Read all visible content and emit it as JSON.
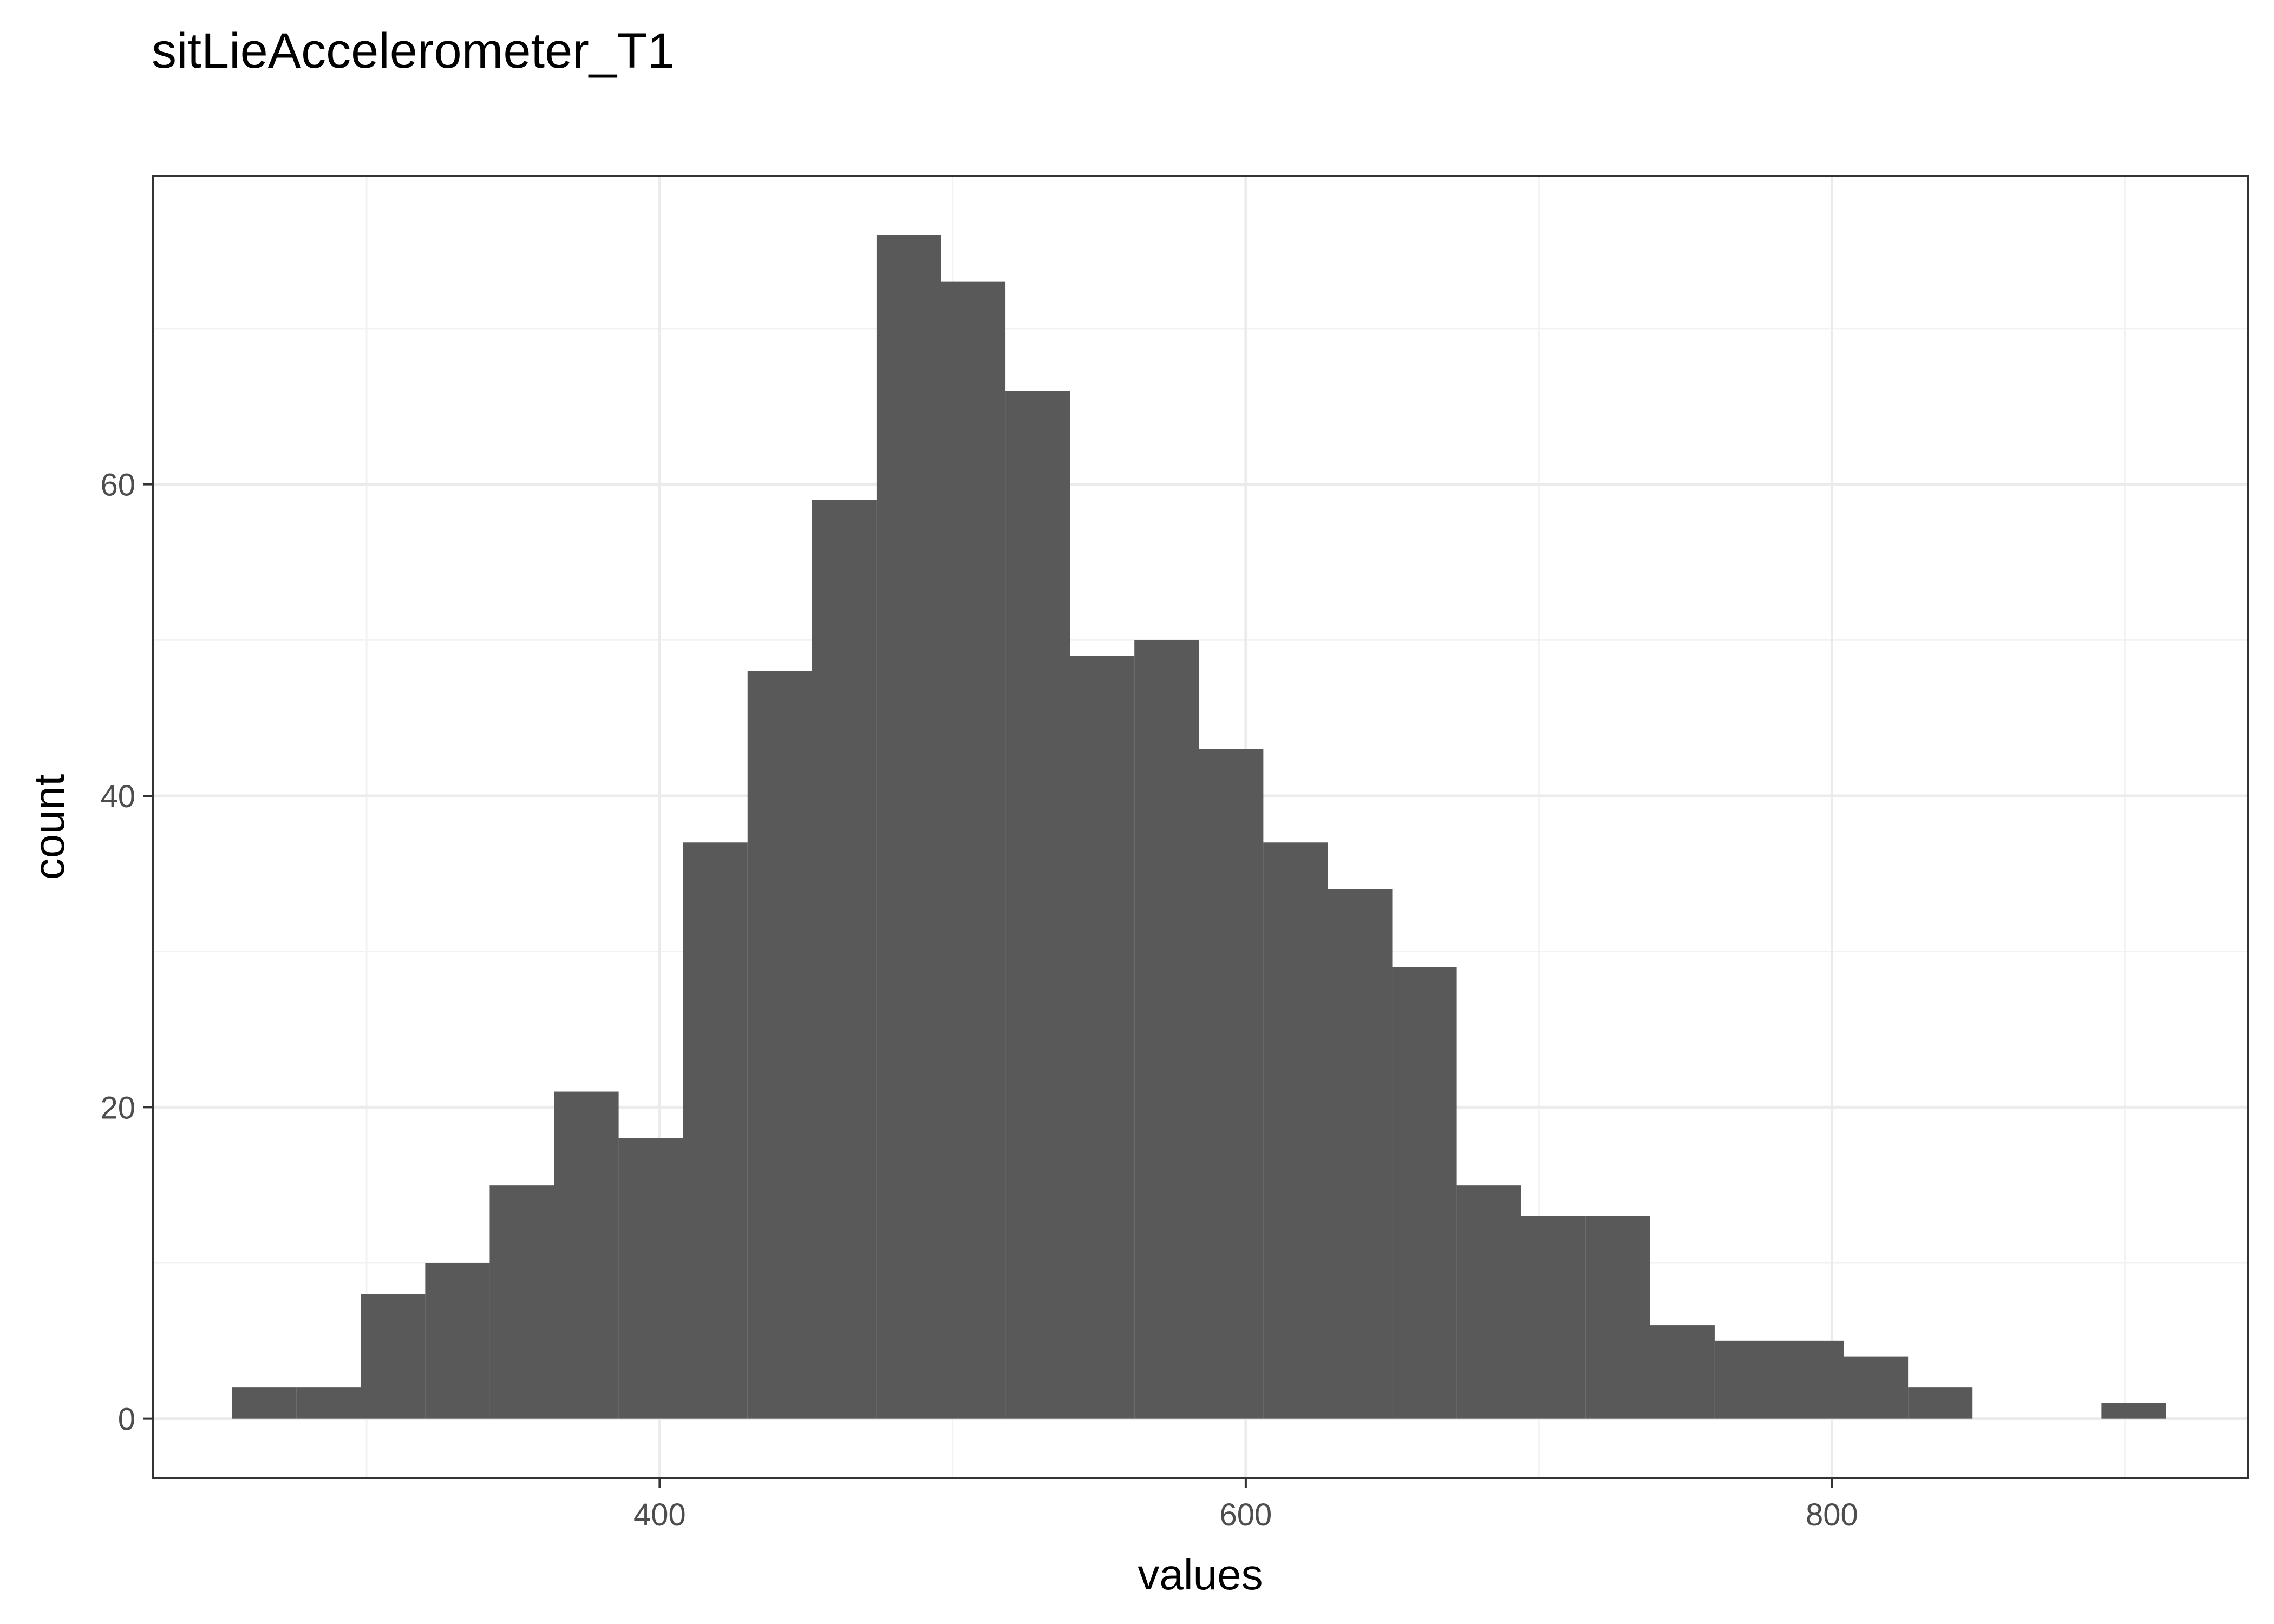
{
  "chart_data": {
    "type": "bar",
    "title": "sitLieAccelerometer_T1",
    "xlabel": "values",
    "ylabel": "count",
    "xlim": [
      227,
      942
    ],
    "ylim": [
      -3.8,
      79.8
    ],
    "x_ticks": [
      400,
      600,
      800
    ],
    "y_ticks": [
      0,
      20,
      40,
      60
    ],
    "x_tick_labels": [
      "400",
      "600",
      "800"
    ],
    "y_tick_labels": [
      "0",
      "20",
      "40",
      "60"
    ],
    "grid": true,
    "legend": "none",
    "bar_color": "#595959",
    "bins": [
      {
        "x0": 254,
        "x1": 276,
        "count": 2
      },
      {
        "x0": 276,
        "x1": 298,
        "count": 2
      },
      {
        "x0": 298,
        "x1": 320,
        "count": 8
      },
      {
        "x0": 320,
        "x1": 342,
        "count": 10
      },
      {
        "x0": 342,
        "x1": 364,
        "count": 15
      },
      {
        "x0": 364,
        "x1": 386,
        "count": 21
      },
      {
        "x0": 386,
        "x1": 408,
        "count": 18
      },
      {
        "x0": 408,
        "x1": 430,
        "count": 37
      },
      {
        "x0": 430,
        "x1": 452,
        "count": 48
      },
      {
        "x0": 452,
        "x1": 474,
        "count": 59
      },
      {
        "x0": 474,
        "x1": 496,
        "count": 76
      },
      {
        "x0": 496,
        "x1": 518,
        "count": 73
      },
      {
        "x0": 518,
        "x1": 540,
        "count": 66
      },
      {
        "x0": 540,
        "x1": 562,
        "count": 49
      },
      {
        "x0": 562,
        "x1": 584,
        "count": 50
      },
      {
        "x0": 584,
        "x1": 606,
        "count": 43
      },
      {
        "x0": 606,
        "x1": 628,
        "count": 37
      },
      {
        "x0": 628,
        "x1": 650,
        "count": 34
      },
      {
        "x0": 650,
        "x1": 672,
        "count": 29
      },
      {
        "x0": 672,
        "x1": 694,
        "count": 15
      },
      {
        "x0": 694,
        "x1": 716,
        "count": 13
      },
      {
        "x0": 716,
        "x1": 738,
        "count": 13
      },
      {
        "x0": 738,
        "x1": 760,
        "count": 6
      },
      {
        "x0": 760,
        "x1": 782,
        "count": 5
      },
      {
        "x0": 782,
        "x1": 804,
        "count": 5
      },
      {
        "x0": 804,
        "x1": 826,
        "count": 4
      },
      {
        "x0": 826,
        "x1": 848,
        "count": 2
      },
      {
        "x0": 848,
        "x1": 870,
        "count": 0
      },
      {
        "x0": 870,
        "x1": 892,
        "count": 0
      },
      {
        "x0": 892,
        "x1": 914,
        "count": 1
      }
    ]
  }
}
